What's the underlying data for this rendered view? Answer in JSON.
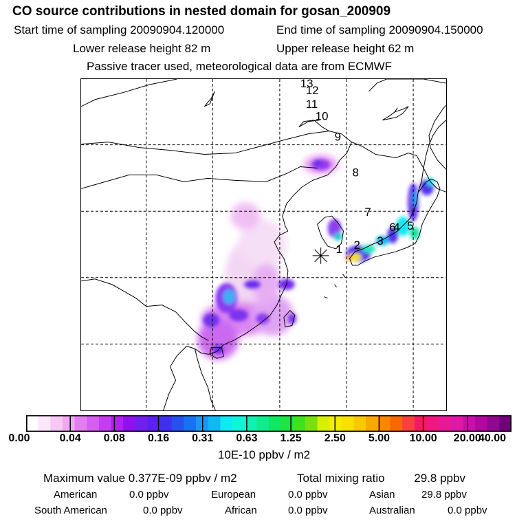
{
  "title": "CO  source contributions in nested domain for gosan_200909",
  "header": {
    "start_label": "Start time of sampling 20090904.120000",
    "end_label": "End time of sampling 20090904.150000",
    "lower_label": "Lower release height   82 m",
    "upper_label": "Upper release height   62 m",
    "note": "Passive tracer used, meteorological data are from ECMWF"
  },
  "trajectory_labels": [
    "13",
    "12",
    "11",
    "10",
    "9",
    "8",
    "7",
    "6",
    "5",
    "4",
    "3",
    "2",
    "1"
  ],
  "colorbar": {
    "ticks": [
      "0.00",
      "0.04",
      "0.08",
      "0.16",
      "0.31",
      "0.63",
      "1.25",
      "2.50",
      "5.00",
      "10.00",
      "20.00",
      "40.00"
    ],
    "colors": [
      "#ffffff",
      "#fbe6fb",
      "#f5c8f5",
      "#efa8f2",
      "#e37ef0",
      "#d65ef0",
      "#c43ef0",
      "#b020ee",
      "#9010ee",
      "#7020ee",
      "#5a22f0",
      "#4030ee",
      "#2850f0",
      "#1872f2",
      "#1898f4",
      "#10b8f4",
      "#10e8f4",
      "#10f4dc",
      "#10f0b4",
      "#10ec8c",
      "#10e864",
      "#20e440",
      "#40e020",
      "#78e010",
      "#d8f000",
      "#f0f000",
      "#f8e000",
      "#f8c800",
      "#f8a800",
      "#f88800",
      "#f86800",
      "#f84040",
      "#f81860",
      "#f01880",
      "#e81898",
      "#e018a8",
      "#c810a8",
      "#b008a0",
      "#900890",
      "#700078"
    ],
    "units": "10E-10 ppbv / m2"
  },
  "summary": {
    "max_label": "Maximum value  0.377E-09 ppbv / m2",
    "total_label": "Total mixing ratio",
    "total_value": "29.8 ppbv"
  },
  "regions": [
    {
      "name": "American",
      "value": "0.0 ppbv"
    },
    {
      "name": "European",
      "value": "0.0 ppbv"
    },
    {
      "name": "Asian",
      "value": "29.8 ppbv"
    },
    {
      "name": "South American",
      "value": "0.0 ppbv"
    },
    {
      "name": "African",
      "value": "0.0 ppbv"
    },
    {
      "name": "Australian",
      "value": "0.0 ppbv"
    }
  ]
}
